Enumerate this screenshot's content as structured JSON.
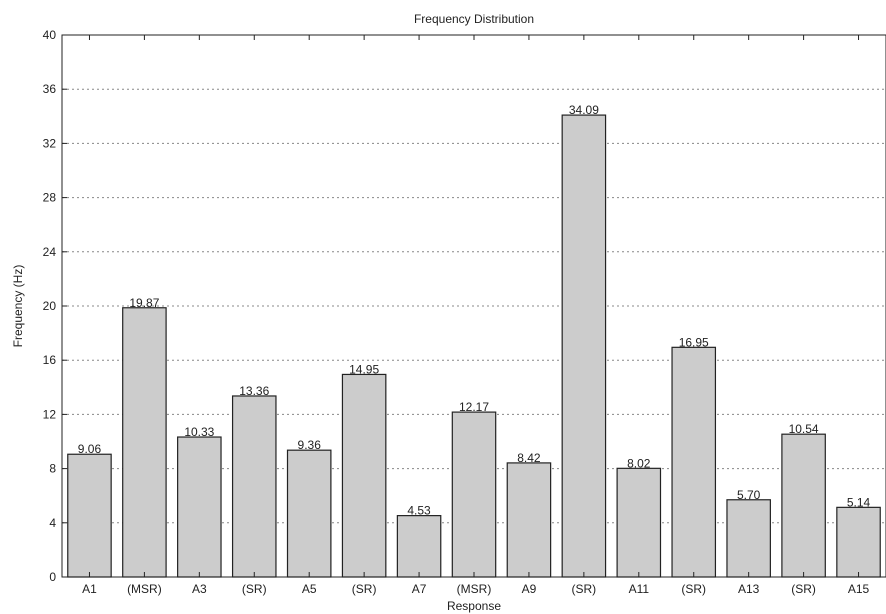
{
  "chart_data": {
    "type": "bar",
    "title": "Frequency Distribution",
    "xlabel": "Response",
    "ylabel": "Frequency (Hz)",
    "ylim": [
      0,
      40
    ],
    "yticks": [
      0,
      4,
      8,
      12,
      16,
      20,
      24,
      28,
      32,
      36,
      40
    ],
    "grid": "horizontal dotted",
    "categories": [
      "A1",
      "(MSR)",
      "A3",
      "(SR)",
      "A5",
      "(SR)",
      "A7",
      "(MSR)",
      "A9",
      "(SR)",
      "A11",
      "(SR)",
      "A13",
      "(SR)",
      "A15"
    ],
    "values": [
      9.06,
      19.87,
      10.33,
      13.36,
      9.36,
      14.95,
      4.53,
      12.17,
      8.42,
      34.09,
      8.02,
      16.95,
      5.7,
      10.54,
      5.14
    ],
    "value_labels": [
      "9.06",
      "19.87",
      "10.33",
      "13.36",
      "9.36",
      "14.95",
      "4.53",
      "12.17",
      "8.42",
      "34.09",
      "8.02",
      "16.95",
      "5.70",
      "10.54",
      "5.14"
    ],
    "colors": {
      "bar_fill": "#cccccc",
      "bar_stroke": "#222222",
      "grid": "#888888"
    }
  }
}
